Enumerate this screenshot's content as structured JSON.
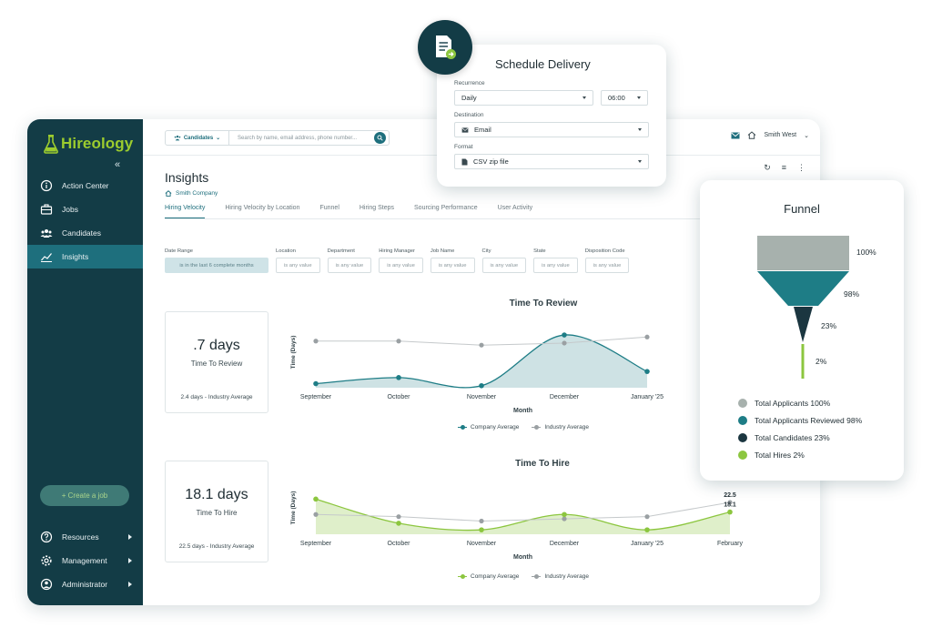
{
  "brand": {
    "name": "Hireology"
  },
  "sidebar": {
    "items": [
      {
        "label": "Action Center",
        "icon": "info-icon"
      },
      {
        "label": "Jobs",
        "icon": "briefcase-icon"
      },
      {
        "label": "Candidates",
        "icon": "people-icon"
      },
      {
        "label": "Insights",
        "icon": "chart-icon"
      }
    ],
    "create_label": "+ Create a job",
    "bottom_items": [
      {
        "label": "Resources",
        "icon": "question-icon"
      },
      {
        "label": "Management",
        "icon": "gear-icon"
      },
      {
        "label": "Administrator",
        "icon": "person-icon"
      }
    ]
  },
  "topbar": {
    "scope": "Candidates",
    "search_placeholder": "Search by name, email address, phone number...",
    "location": "Smith West"
  },
  "page": {
    "title": "Insights",
    "company": "Smith Company"
  },
  "tabs": [
    "Hiring Velocity",
    "Hiring Velocity by Location",
    "Funnel",
    "Hiring Steps",
    "Sourcing Performance",
    "User Activity"
  ],
  "filters": [
    {
      "label": "Date Range",
      "value": "is in the last 6 complete months"
    },
    {
      "label": "Location",
      "value": "is any value"
    },
    {
      "label": "Department",
      "value": "is any value"
    },
    {
      "label": "Hiring Manager",
      "value": "is any value"
    },
    {
      "label": "Job Name",
      "value": "is any value"
    },
    {
      "label": "City",
      "value": "is any value"
    },
    {
      "label": "State",
      "value": "is any value"
    },
    {
      "label": "Disposition Code",
      "value": "is any value"
    }
  ],
  "kpis": {
    "review": {
      "value": ".7 days",
      "label": "Time To Review",
      "avg": "2.4 days - Industry Average"
    },
    "hire": {
      "value": "18.1 days",
      "label": "Time To Hire",
      "avg": "22.5 days - Industry Average"
    }
  },
  "legend": {
    "company": "Company Average",
    "industry": "Industry Average"
  },
  "colors": {
    "teal": "#1e7d86",
    "green": "#8cc63f",
    "gray": "#9aa0a3",
    "navy": "#133c46"
  },
  "chart_data": [
    {
      "type": "area",
      "title": "Time To Review",
      "xlabel": "Month",
      "ylabel": "Time (Days)",
      "categories": [
        "September",
        "October",
        "November",
        "December",
        "January '25"
      ],
      "series": [
        {
          "name": "Company Average",
          "values": [
            0.2,
            0.5,
            0.1,
            2.6,
            0.8
          ]
        },
        {
          "name": "Industry Average",
          "values": [
            2.3,
            2.3,
            2.1,
            2.2,
            2.5
          ]
        }
      ],
      "ylim": [
        0,
        3.5
      ]
    },
    {
      "type": "area",
      "title": "Time To Hire",
      "xlabel": "Month",
      "ylabel": "Time (Days)",
      "categories": [
        "September",
        "October",
        "November",
        "December",
        "January '25",
        "February"
      ],
      "series": [
        {
          "name": "Company Average",
          "values": [
            24,
            13,
            10,
            17,
            10,
            18.1
          ]
        },
        {
          "name": "Industry Average",
          "values": [
            17,
            16,
            14,
            15,
            16,
            22.5
          ]
        }
      ],
      "data_labels": [
        "22.5",
        "18.1"
      ],
      "ylim": [
        8,
        32
      ]
    }
  ],
  "schedule": {
    "title": "Schedule Delivery",
    "recurrence_label": "Recurrence",
    "recurrence": "Daily",
    "time": "06:00",
    "destination_label": "Destination",
    "destination": "Email",
    "format_label": "Format",
    "format": "CSV zip file"
  },
  "funnel": {
    "title": "Funnel",
    "stages": [
      {
        "pct": "100%",
        "value": 100,
        "color": "#a7b1ad",
        "legend": "Total Applicants 100%"
      },
      {
        "pct": "98%",
        "value": 98,
        "color": "#1e7d86",
        "legend": "Total Applicants Reviewed 98%"
      },
      {
        "pct": "23%",
        "value": 23,
        "color": "#1b3640",
        "legend": "Total Candidates 23%"
      },
      {
        "pct": "2%",
        "value": 2,
        "color": "#8cc63f",
        "legend": "Total Hires 2%"
      }
    ]
  }
}
